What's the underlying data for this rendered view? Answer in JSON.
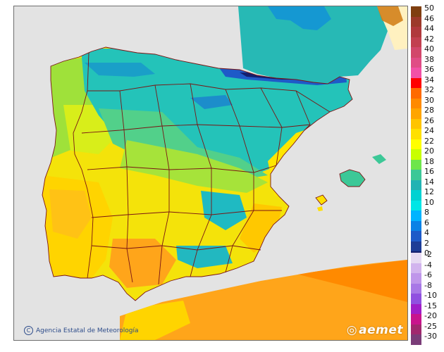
{
  "map": {
    "attribution": "Agencia Estatal de Meteorología",
    "logo_text": "aemet"
  },
  "legend": {
    "positive_stops": [
      {
        "label": "50",
        "color": "#7f3f10"
      },
      {
        "label": "46",
        "color": "#9c3a2a"
      },
      {
        "label": "44",
        "color": "#b0393c"
      },
      {
        "label": "42",
        "color": "#c2404f"
      },
      {
        "label": "40",
        "color": "#d2476a"
      },
      {
        "label": "38",
        "color": "#e04c85"
      },
      {
        "label": "36",
        "color": "#f250a6"
      },
      {
        "label": "34",
        "color": "#ff0000"
      },
      {
        "label": "32",
        "color": "#ff6a00"
      },
      {
        "label": "30",
        "color": "#ff8a00"
      },
      {
        "label": "28",
        "color": "#ffa500"
      },
      {
        "label": "26",
        "color": "#ffc400"
      },
      {
        "label": "24",
        "color": "#ffe000"
      },
      {
        "label": "22",
        "color": "#ffff00"
      },
      {
        "label": "20",
        "color": "#c8ff00"
      },
      {
        "label": "18",
        "color": "#6ee64b"
      },
      {
        "label": "16",
        "color": "#3cc897"
      },
      {
        "label": "14",
        "color": "#22b3b3"
      },
      {
        "label": "12",
        "color": "#00d2d2"
      },
      {
        "label": "10",
        "color": "#00e6e6"
      },
      {
        "label": "8",
        "color": "#00b4ff"
      },
      {
        "label": "6",
        "color": "#0a82e6"
      },
      {
        "label": "4",
        "color": "#1e5ac8"
      },
      {
        "label": "2",
        "color": "#1e3c96"
      },
      {
        "label": "0",
        "color": "#141e6e"
      }
    ],
    "negative_stops": [
      {
        "label": "-2",
        "color": "#e6d9f2"
      },
      {
        "label": "-4",
        "color": "#d2b4ee"
      },
      {
        "label": "-6",
        "color": "#bf96ea"
      },
      {
        "label": "-8",
        "color": "#a878e6"
      },
      {
        "label": "-10",
        "color": "#9050e0"
      },
      {
        "label": "-15",
        "color": "#a01ec8"
      },
      {
        "label": "-20",
        "color": "#c8148c"
      },
      {
        "label": "-25",
        "color": "#a0286e"
      },
      {
        "label": "-30",
        "color": "#7a3c78"
      }
    ]
  }
}
